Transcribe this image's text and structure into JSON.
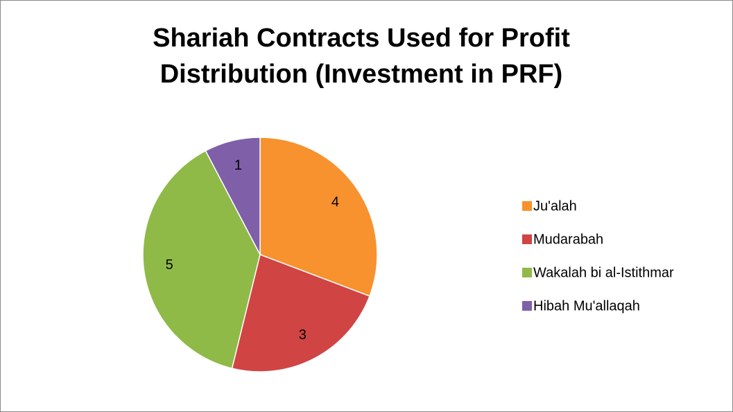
{
  "chart_data": {
    "type": "pie",
    "title": "Shariah Contracts Used for Profit Distribution (Investment in PRF)",
    "categories": [
      "Ju'alah",
      "Mudarabah",
      "Wakalah bi al-Istithmar",
      "Hibah Mu'allaqah"
    ],
    "values": [
      4,
      3,
      5,
      1
    ],
    "colors": [
      "#f7922e",
      "#d04444",
      "#8fba48",
      "#7f5fa8"
    ],
    "legend": "right"
  }
}
